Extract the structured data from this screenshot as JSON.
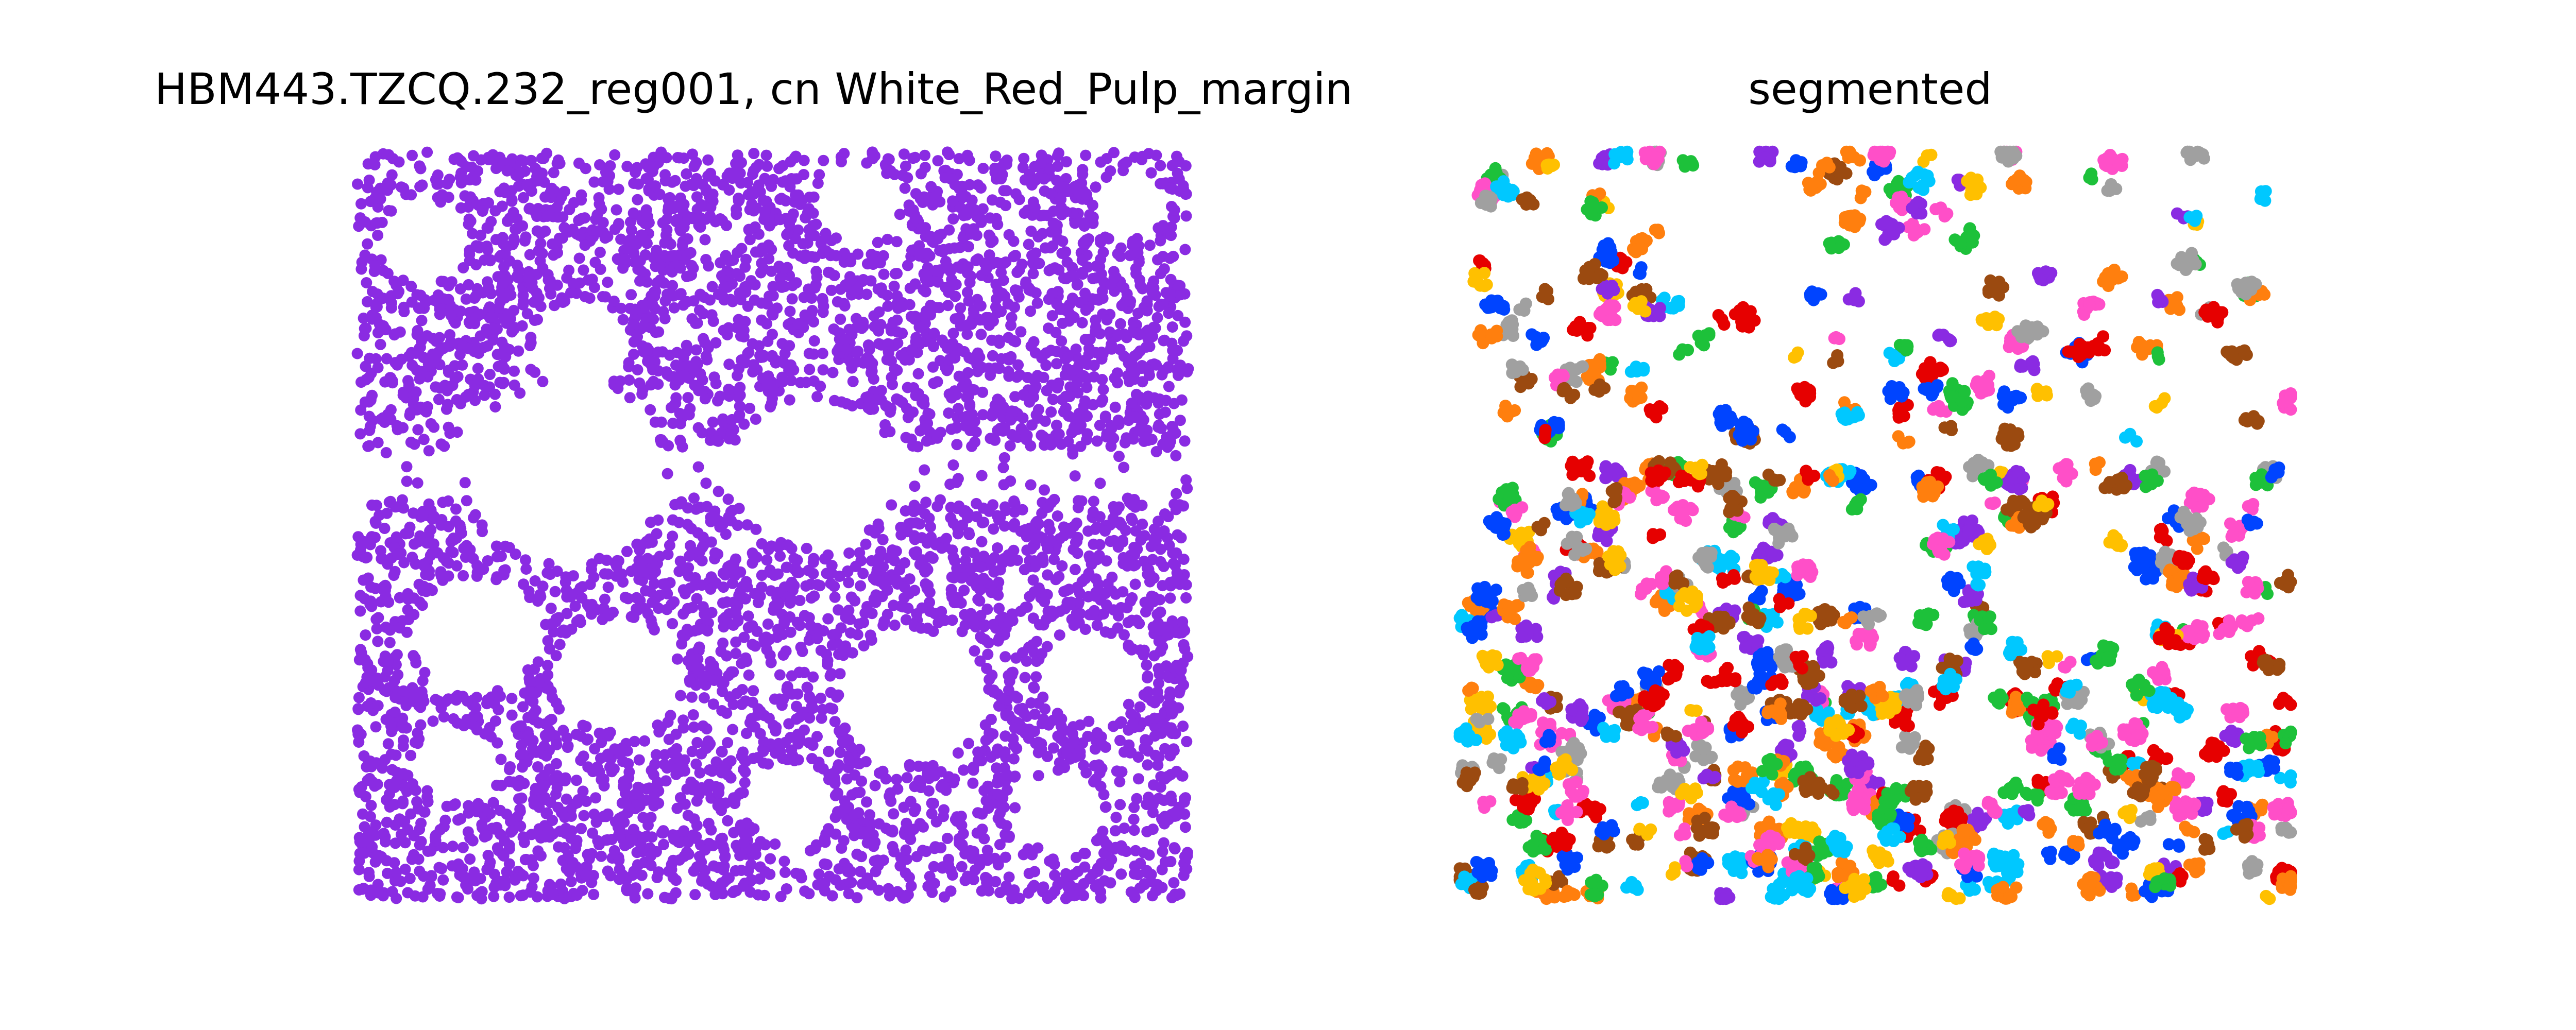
{
  "chart_data": [
    {
      "type": "scatter",
      "title": "HBM443.TZCQ.232_reg001, cn White_Red_Pulp_margin",
      "axes_visible": false,
      "grid": false,
      "legend": "none",
      "xlim": [
        0,
        1
      ],
      "ylim": [
        0,
        1
      ],
      "series": [
        {
          "color": "#8a2be2",
          "point_count": 5200,
          "distribution": "dense uniform cloud covering the full region with a horizontal gap band at y=0.53-0.61 and circular voids",
          "voids": [
            {
              "x": 0.08,
              "y": 0.88,
              "r": 0.055
            },
            {
              "x": 0.27,
              "y": 0.74,
              "r": 0.06
            },
            {
              "x": 0.6,
              "y": 0.93,
              "r": 0.05
            },
            {
              "x": 0.93,
              "y": 0.93,
              "r": 0.045
            },
            {
              "x": 0.25,
              "y": 0.57,
              "r": 0.12
            },
            {
              "x": 0.55,
              "y": 0.57,
              "r": 0.1
            },
            {
              "x": 0.14,
              "y": 0.35,
              "r": 0.075
            },
            {
              "x": 0.31,
              "y": 0.3,
              "r": 0.075
            },
            {
              "x": 0.67,
              "y": 0.27,
              "r": 0.09
            },
            {
              "x": 0.88,
              "y": 0.3,
              "r": 0.06
            },
            {
              "x": 0.12,
              "y": 0.18,
              "r": 0.05
            },
            {
              "x": 0.52,
              "y": 0.13,
              "r": 0.055
            },
            {
              "x": 0.85,
              "y": 0.12,
              "r": 0.05
            }
          ]
        }
      ]
    },
    {
      "type": "scatter",
      "title": "segmented",
      "axes_visible": false,
      "grid": false,
      "legend": "none",
      "xlim": [
        0,
        1
      ],
      "ylim": [
        0,
        1
      ],
      "palette": [
        "#8a2be2",
        "#0044ff",
        "#00c8ff",
        "#1dc13a",
        "#e60000",
        "#ff7f0e",
        "#ffc000",
        "#ff4fc8",
        "#9b4a10",
        "#a0a0a0"
      ],
      "cluster_count": 640,
      "points_per_cluster": [
        3,
        14
      ],
      "cluster_spread": 0.006,
      "distribution": "small colored segments scattered over the same region, sparse in the upper band, dense in the lower band, with empty voids",
      "voids": [
        {
          "x": 0.08,
          "y": 0.88,
          "r": 0.05
        },
        {
          "x": 0.32,
          "y": 0.85,
          "r": 0.06
        },
        {
          "x": 0.58,
          "y": 0.82,
          "r": 0.05
        },
        {
          "x": 0.8,
          "y": 0.88,
          "r": 0.05
        },
        {
          "x": 0.5,
          "y": 0.45,
          "r": 0.065
        },
        {
          "x": 0.72,
          "y": 0.42,
          "r": 0.09
        },
        {
          "x": 0.18,
          "y": 0.36,
          "r": 0.07
        },
        {
          "x": 0.9,
          "y": 0.3,
          "r": 0.05
        },
        {
          "x": 0.62,
          "y": 0.2,
          "r": 0.06
        }
      ],
      "gap_band": [
        0.58,
        0.61
      ]
    }
  ]
}
